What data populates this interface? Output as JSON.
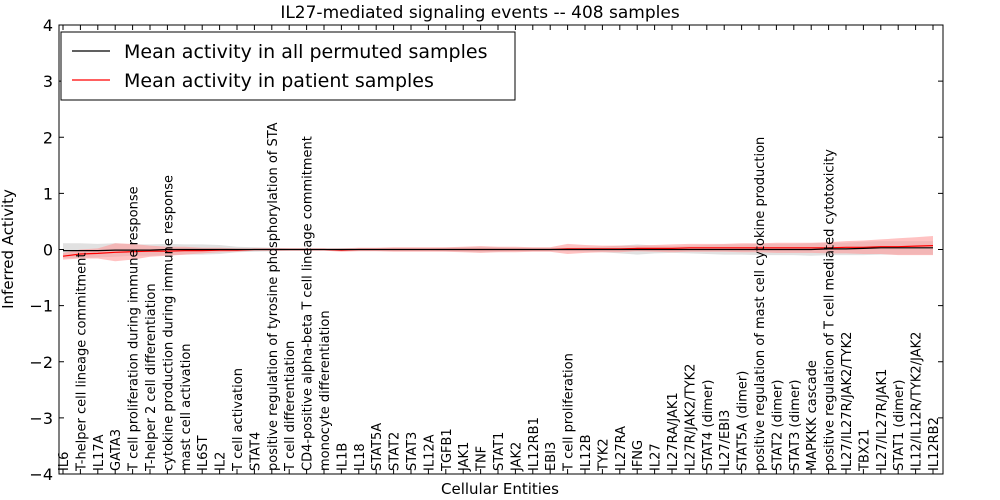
{
  "chart_data": {
    "type": "line",
    "title": "IL27-mediated signaling events -- 408 samples",
    "xlabel": "Cellular Entities",
    "ylabel": "Inferred Activity",
    "ylim": [
      -4,
      4
    ],
    "yticks": [
      -4,
      -3,
      -2,
      -1,
      0,
      1,
      2,
      3,
      4
    ],
    "ytick_labels": [
      "−4",
      "−3",
      "−2",
      "−1",
      "0",
      "1",
      "2",
      "3",
      "4"
    ],
    "legend_position": "top-left",
    "categories": [
      "IL6",
      "T-helper cell lineage commitment",
      "IL17A",
      "GATA3",
      "T cell proliferation during immune response",
      "T-helper 2 cell differentiation",
      "cytokine production during immune response",
      "mast cell activation",
      "IL6ST",
      "IL2",
      "T cell activation",
      "STAT4",
      "positive regulation of tyrosine phosphorylation of STA",
      "T cell differentiation",
      "CD4-positive alpha-beta T cell lineage commitment",
      "monocyte differentiation",
      "IL1B",
      "IL18",
      "STAT5A",
      "STAT2",
      "STAT3",
      "IL12A",
      "TGFB1",
      "JAK1",
      "TNF",
      "STAT1",
      "JAK2",
      "IL12RB1",
      "EBI3",
      "T cell proliferation",
      "IL12B",
      "TYK2",
      "IL27RA",
      "IFNG",
      "IL27",
      "IL27RA/JAK1",
      "IL27R/JAK2/TYK2",
      "STAT4 (dimer)",
      "IL27/EBI3",
      "STAT5A (dimer)",
      "positive regulation of mast cell cytokine production",
      "STAT2 (dimer)",
      "STAT3 (dimer)",
      "MAPKKK cascade",
      "positive regulation of T cell mediated cytotoxicity",
      "IL27/IL27R/JAK2/TYK2",
      "TBX21",
      "IL27/IL27R/JAK1",
      "STAT1 (dimer)",
      "IL12/IL12R/TYK2/JAK2",
      "IL12RB2"
    ],
    "series": [
      {
        "name": "Mean activity in all permuted samples",
        "color": "#000000",
        "band_color": "#c8c8c8",
        "values": [
          -0.02,
          -0.02,
          -0.02,
          -0.01,
          -0.01,
          -0.01,
          0,
          0,
          0,
          0,
          0,
          0,
          0,
          0,
          0,
          0,
          0,
          0,
          0,
          0,
          0,
          0,
          0,
          0,
          0,
          0,
          0,
          0,
          0,
          0,
          0,
          0,
          0,
          0,
          0,
          0,
          0,
          0,
          0,
          0,
          0,
          0,
          0,
          0,
          0.01,
          0.01,
          0.02,
          0.03,
          0.03,
          0.03,
          0.03
        ],
        "spread": [
          0.13,
          0.13,
          0.12,
          0.12,
          0.1,
          0.1,
          0.1,
          0.09,
          0.09,
          0.08,
          0.05,
          0.04,
          0.03,
          0.02,
          0.02,
          0.01,
          0.02,
          0.02,
          0.02,
          0.02,
          0.02,
          0.02,
          0.03,
          0.04,
          0.05,
          0.04,
          0.03,
          0.03,
          0.03,
          0.03,
          0.04,
          0.05,
          0.07,
          0.09,
          0.07,
          0.06,
          0.07,
          0.08,
          0.09,
          0.09,
          0.1,
          0.1,
          0.1,
          0.11,
          0.11,
          0.11,
          0.12,
          0.12,
          0.12,
          0.12,
          0.12
        ]
      },
      {
        "name": "Mean activity in patient samples",
        "color": "#ff0000",
        "band_color": "#ff9a9a",
        "values": [
          -0.12,
          -0.08,
          -0.07,
          -0.05,
          -0.04,
          -0.03,
          -0.03,
          -0.02,
          -0.02,
          -0.01,
          -0.01,
          0,
          0,
          0,
          0,
          0,
          -0.01,
          0,
          0,
          0,
          0,
          0,
          0,
          0,
          0,
          0,
          0,
          0,
          0,
          0.01,
          0.01,
          0.01,
          0.01,
          0.02,
          0.02,
          0.02,
          0.03,
          0.03,
          0.03,
          0.03,
          0.03,
          0.03,
          0.03,
          0.03,
          0.03,
          0.04,
          0.04,
          0.05,
          0.05,
          0.06,
          0.07
        ],
        "spread": [
          0.06,
          0.08,
          0.09,
          0.16,
          0.14,
          0.1,
          0.08,
          0.07,
          0.05,
          0.04,
          0.03,
          0.02,
          0.02,
          0.02,
          0.02,
          0.02,
          0.03,
          0.03,
          0.03,
          0.04,
          0.04,
          0.04,
          0.04,
          0.05,
          0.06,
          0.05,
          0.05,
          0.04,
          0.04,
          0.09,
          0.07,
          0.06,
          0.06,
          0.05,
          0.06,
          0.07,
          0.07,
          0.07,
          0.07,
          0.08,
          0.08,
          0.09,
          0.09,
          0.09,
          0.1,
          0.11,
          0.12,
          0.13,
          0.15,
          0.16,
          0.17
        ]
      }
    ]
  }
}
